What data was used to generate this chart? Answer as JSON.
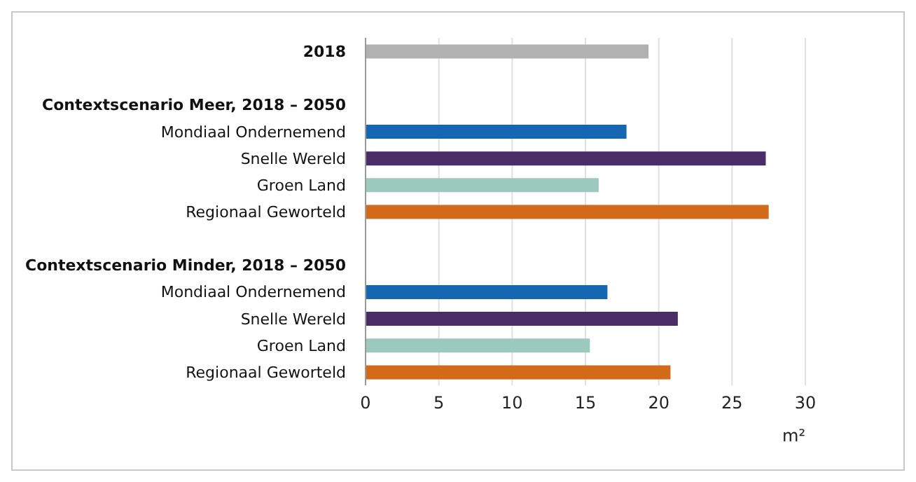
{
  "chart_data": {
    "type": "bar",
    "orientation": "horizontal",
    "xlabel": "m²",
    "categories": [
      "2018",
      null,
      "Contextscenario Meer, 2018 – 2050",
      "Mondiaal Ondernemend",
      "Snelle Wereld",
      "Groen Land",
      "Regionaal Geworteld",
      null,
      "Contextscenario Minder, 2018 – 2050",
      "Mondiaal Ondernemend",
      "Snelle Wereld",
      "Groen Land",
      "Regionaal Geworteld"
    ],
    "values": [
      19.3,
      null,
      null,
      17.8,
      27.3,
      15.9,
      27.5,
      null,
      null,
      16.5,
      21.3,
      15.3,
      20.8
    ],
    "colors": [
      "#b1b1b1",
      null,
      null,
      "#1467b0",
      "#4a2c66",
      "#9cc9bd",
      "#d26a1a",
      null,
      null,
      "#1467b0",
      "#4a2c66",
      "#9cc9bd",
      "#d26a1a"
    ],
    "xlim": [
      0,
      30
    ],
    "xticks": [
      0,
      5,
      10,
      15,
      20,
      25,
      30
    ],
    "grid": "x"
  }
}
